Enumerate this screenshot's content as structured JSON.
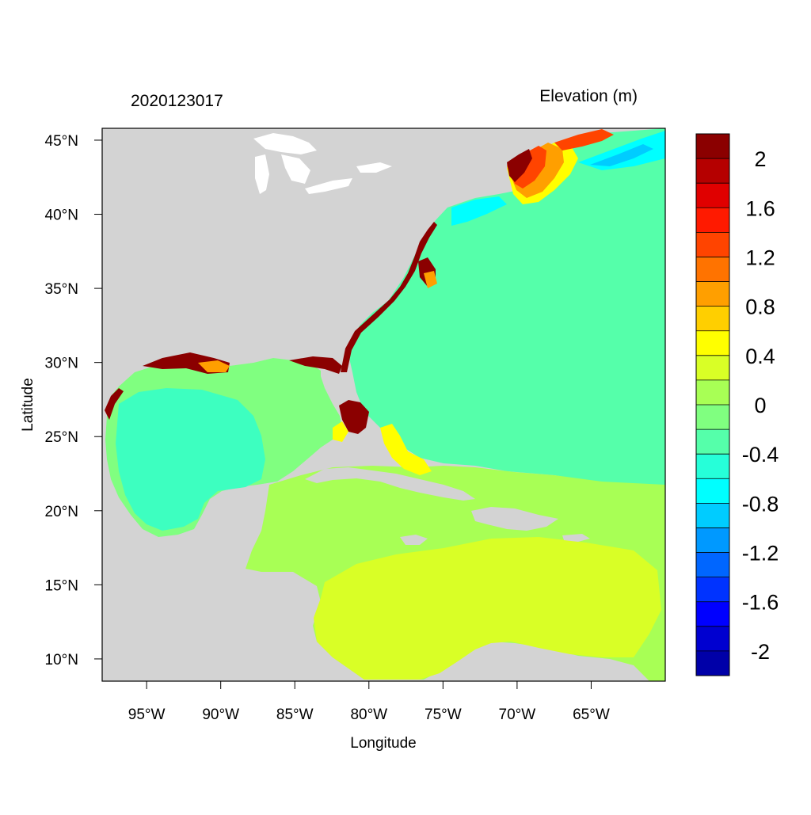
{
  "title_left": "2020123017",
  "title_right": "Elevation (m)",
  "x_axis": {
    "label": "Longitude",
    "range": [
      -98.0,
      -60.0
    ],
    "ticks": [
      {
        "value": -95,
        "label": "95°W"
      },
      {
        "value": -90,
        "label": "90°W"
      },
      {
        "value": -85,
        "label": "85°W"
      },
      {
        "value": -80,
        "label": "80°W"
      },
      {
        "value": -75,
        "label": "75°W"
      },
      {
        "value": -70,
        "label": "70°W"
      },
      {
        "value": -65,
        "label": "65°W"
      }
    ]
  },
  "y_axis": {
    "label": "Latitude",
    "range": [
      8.5,
      45.8
    ],
    "ticks": [
      {
        "value": 45,
        "label": "45°N"
      },
      {
        "value": 40,
        "label": "40°N"
      },
      {
        "value": 35,
        "label": "35°N"
      },
      {
        "value": 30,
        "label": "30°N"
      },
      {
        "value": 25,
        "label": "25°N"
      },
      {
        "value": 20,
        "label": "20°N"
      },
      {
        "value": 15,
        "label": "15°N"
      },
      {
        "value": 10,
        "label": "10°N"
      }
    ]
  },
  "colorbar": {
    "colors": [
      "#8b0000",
      "#b50000",
      "#e00000",
      "#ff1a00",
      "#ff4400",
      "#ff7300",
      "#ff9f00",
      "#ffcf00",
      "#ffff00",
      "#d9ff26",
      "#a8ff55",
      "#80ff80",
      "#55ffaa",
      "#26ffd9",
      "#00ffff",
      "#00ccff",
      "#0099ff",
      "#0066ff",
      "#0033ff",
      "#0000ff",
      "#0000d0",
      "#0000a8"
    ],
    "labels": [
      "2",
      "1.6",
      "1.2",
      "0.8",
      "0.4",
      "0",
      "-0.4",
      "-0.8",
      "-1.2",
      "-1.6",
      "-2"
    ]
  },
  "map_colors": {
    "land": "#d3d3d3",
    "ocean_gulf": "#80ff80",
    "ocean_atlantic": "#55ffaa",
    "gulf_center": "#3dffc0",
    "caribbean": "#a8ff55",
    "caribbean_south": "#d9ff26",
    "surge_high": "#8b0000",
    "surge_mid": "#ff4400",
    "surge_low": "#ff9f00",
    "yellow": "#ffff00",
    "cyan": "#00ffff",
    "blue": "#00ccff"
  }
}
